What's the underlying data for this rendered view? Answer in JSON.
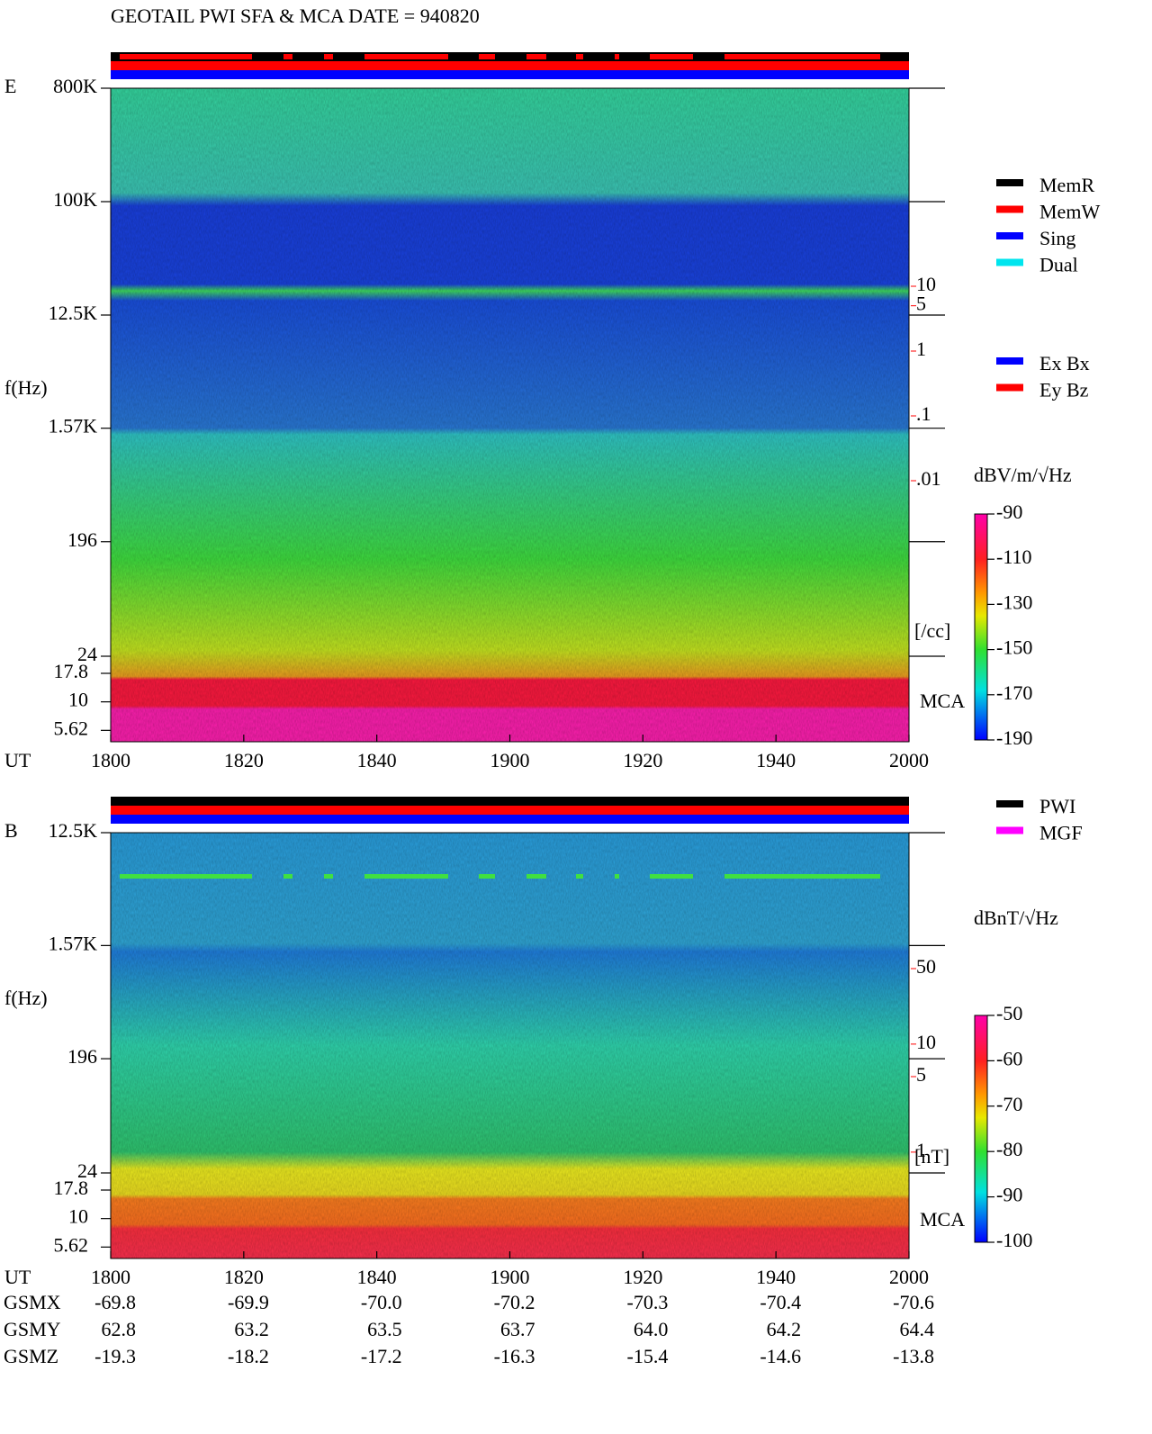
{
  "title": "GEOTAIL  PWI SFA & MCA   DATE = 940820",
  "chart_data": [
    {
      "type": "spectrogram",
      "panel_label": "E",
      "ylabel": "f(Hz)",
      "xlabel": "UT",
      "log_y": true,
      "ylim": [
        24,
        800000
      ],
      "yticks": [
        {
          "value": 800000,
          "label": "800K"
        },
        {
          "value": 100000,
          "label": "100K"
        },
        {
          "value": 12500,
          "label": "12.5K"
        },
        {
          "value": 1570,
          "label": "1.57K"
        },
        196,
        24
      ],
      "mca_ticks": [
        17.8,
        10,
        5.62
      ],
      "mca_label": "MCA",
      "xticks": [
        "1800",
        "1820",
        "1840",
        "1900",
        "1920",
        "1940",
        "2000"
      ],
      "density_ticks": [
        10,
        5,
        1,
        {
          "value": 0.1,
          "label": ".1"
        },
        {
          "value": 0.01,
          "label": ".01"
        }
      ],
      "density_unit": "[/cc]",
      "density_color": "#ff0000",
      "colorbar_label": "dBV/m/√Hz",
      "clim": [
        -190,
        -90
      ],
      "cticks": [
        -90,
        -110,
        -130,
        -150,
        -170,
        -190
      ],
      "legend": [
        {
          "name": "MemR",
          "color": "#000000"
        },
        {
          "name": "MemW",
          "color": "#ff0000"
        },
        {
          "name": "Sing",
          "color": "#0000ff"
        },
        {
          "name": "Dual",
          "color": "#00e5ee"
        }
      ],
      "legend2": [
        {
          "name": "Ex Bx",
          "color": "#0000ff"
        },
        {
          "name": "Ey Bz",
          "color": "#ff0000"
        }
      ]
    },
    {
      "type": "spectrogram",
      "panel_label": "B",
      "ylabel": "f(Hz)",
      "xlabel": "UT",
      "log_y": true,
      "ylim": [
        24,
        12500
      ],
      "yticks": [
        {
          "value": 12500,
          "label": "12.5K"
        },
        {
          "value": 1570,
          "label": "1.57K"
        },
        196,
        24
      ],
      "mca_ticks": [
        17.8,
        10,
        5.62
      ],
      "mca_label": "MCA",
      "xticks": [
        "1800",
        "1820",
        "1840",
        "1900",
        "1920",
        "1940",
        "2000"
      ],
      "density_ticks": [
        50,
        10,
        5,
        1
      ],
      "density_unit": "[nT]",
      "density_color": "#ff0000",
      "colorbar_label": "dBnT/√Hz",
      "clim": [
        -100,
        -50
      ],
      "cticks": [
        -50,
        -60,
        -70,
        -80,
        -90,
        -100
      ],
      "legend": [
        {
          "name": "PWI",
          "color": "#000000"
        },
        {
          "name": "MGF",
          "color": "#ff00ff"
        }
      ]
    }
  ],
  "orbit": {
    "rows": [
      {
        "name": "GSMX",
        "values": [
          "-69.8",
          "-69.9",
          "-70.0",
          "-70.2",
          "-70.3",
          "-70.4",
          "-70.6"
        ]
      },
      {
        "name": "GSMY",
        "values": [
          "62.8",
          "63.2",
          "63.5",
          "63.7",
          "64.0",
          "64.2",
          "64.4"
        ]
      },
      {
        "name": "GSMZ",
        "values": [
          "-19.3",
          "-18.2",
          "-17.2",
          "-16.3",
          "-15.4",
          "-14.6",
          "-13.8"
        ]
      }
    ]
  }
}
